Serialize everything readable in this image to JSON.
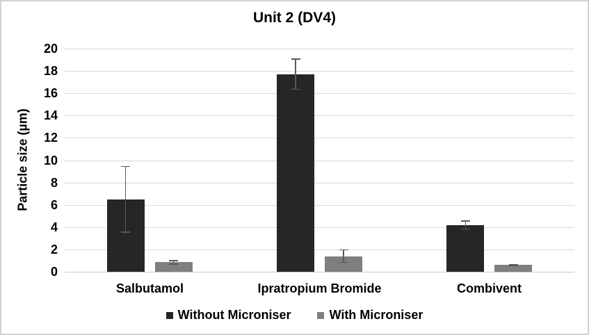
{
  "chart_data": {
    "type": "bar",
    "title": "Unit 2 (DV4)",
    "ylabel": "Particle size (µm)",
    "xlabel": "",
    "categories": [
      "Salbutamol",
      "Ipratropium Bromide",
      "Combivent"
    ],
    "series": [
      {
        "name": "Without Microniser",
        "color": "#262626",
        "values": [
          6.5,
          17.7,
          4.2
        ],
        "error_bars": [
          3.0,
          1.4,
          0.4
        ]
      },
      {
        "name": "With Microniser",
        "color": "#7f7f7f",
        "values": [
          0.85,
          1.4,
          0.6
        ],
        "error_bars": [
          0.2,
          0.6,
          0.1
        ]
      }
    ],
    "ylim": [
      0,
      20
    ],
    "yticks": [
      0,
      2,
      4,
      6,
      8,
      10,
      12,
      14,
      16,
      18,
      20
    ],
    "grid": true,
    "legend_position": "bottom",
    "gridline_color": "#d9d9d9",
    "error_bar_color": "#595959",
    "background_color": "#ffffff",
    "border_color": "#d2d2d2"
  }
}
